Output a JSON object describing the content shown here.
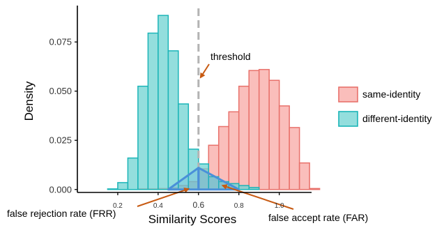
{
  "chart_data": {
    "type": "histogram",
    "xlabel": "Similarity Scores",
    "ylabel": "Density",
    "xlim": [
      0.0,
      1.16
    ],
    "ylim": [
      -0.0015,
      0.0935
    ],
    "x_ticks": [
      {
        "value": 0.2,
        "label": "0.2"
      },
      {
        "value": 0.4,
        "label": "0.4"
      },
      {
        "value": 0.6,
        "label": "0.6"
      },
      {
        "value": 0.8,
        "label": "0.8"
      },
      {
        "value": 1.0,
        "label": "1.0"
      }
    ],
    "y_ticks": [
      {
        "value": 0.0,
        "label": "0.000"
      },
      {
        "value": 0.025,
        "label": "0.025"
      },
      {
        "value": 0.05,
        "label": "0.050"
      },
      {
        "value": 0.075,
        "label": "0.075"
      }
    ],
    "bin_width": 0.05,
    "series": [
      {
        "name": "same-identity",
        "fill": "#F8A8A4",
        "stroke": "#E8716B",
        "bins": [
          {
            "x0": 0.3,
            "value": 0.0003
          },
          {
            "x0": 0.35,
            "value": 0.0003
          },
          {
            "x0": 0.4,
            "value": 0.0005
          },
          {
            "x0": 0.45,
            "value": 0.0008
          },
          {
            "x0": 0.5,
            "value": 0.002
          },
          {
            "x0": 0.55,
            "value": 0.004
          },
          {
            "x0": 0.6,
            "value": 0.0105
          },
          {
            "x0": 0.65,
            "value": 0.0225
          },
          {
            "x0": 0.7,
            "value": 0.032
          },
          {
            "x0": 0.75,
            "value": 0.0395
          },
          {
            "x0": 0.8,
            "value": 0.0525
          },
          {
            "x0": 0.85,
            "value": 0.0605
          },
          {
            "x0": 0.9,
            "value": 0.061
          },
          {
            "x0": 0.95,
            "value": 0.0555
          },
          {
            "x0": 1.0,
            "value": 0.0425
          },
          {
            "x0": 1.05,
            "value": 0.0315
          },
          {
            "x0": 1.1,
            "value": 0.0135
          },
          {
            "x0": 1.15,
            "value": 0.0005
          }
        ]
      },
      {
        "name": "different-identity",
        "fill": "#6FD3D1",
        "stroke": "#1BB5B8",
        "bins": [
          {
            "x0": 0.15,
            "value": 0.0003
          },
          {
            "x0": 0.2,
            "value": 0.0035
          },
          {
            "x0": 0.25,
            "value": 0.016
          },
          {
            "x0": 0.3,
            "value": 0.0525
          },
          {
            "x0": 0.35,
            "value": 0.0795
          },
          {
            "x0": 0.4,
            "value": 0.0885
          },
          {
            "x0": 0.45,
            "value": 0.0705
          },
          {
            "x0": 0.5,
            "value": 0.0435
          },
          {
            "x0": 0.55,
            "value": 0.0205
          },
          {
            "x0": 0.6,
            "value": 0.013
          },
          {
            "x0": 0.65,
            "value": 0.0065
          },
          {
            "x0": 0.7,
            "value": 0.004
          },
          {
            "x0": 0.75,
            "value": 0.003
          },
          {
            "x0": 0.8,
            "value": 0.002
          },
          {
            "x0": 0.85,
            "value": 0.001
          }
        ]
      }
    ],
    "threshold": {
      "x": 0.6,
      "label": "threshold",
      "color": "#B3B3B3"
    },
    "error_triangles": {
      "color": "#4A90D9",
      "frr": {
        "points": [
          [
            0.45,
            0.0
          ],
          [
            0.6,
            0.011
          ],
          [
            0.6,
            0.0
          ]
        ]
      },
      "far": {
        "points": [
          [
            0.6,
            0.0
          ],
          [
            0.6,
            0.011
          ],
          [
            0.8,
            0.0
          ]
        ]
      }
    },
    "annotations": [
      {
        "text": "false rejection rate (FRR)"
      },
      {
        "text": "false accept rate (FAR)"
      }
    ],
    "arrow_color": "#C75A12",
    "legend": {
      "placement": "right"
    }
  }
}
